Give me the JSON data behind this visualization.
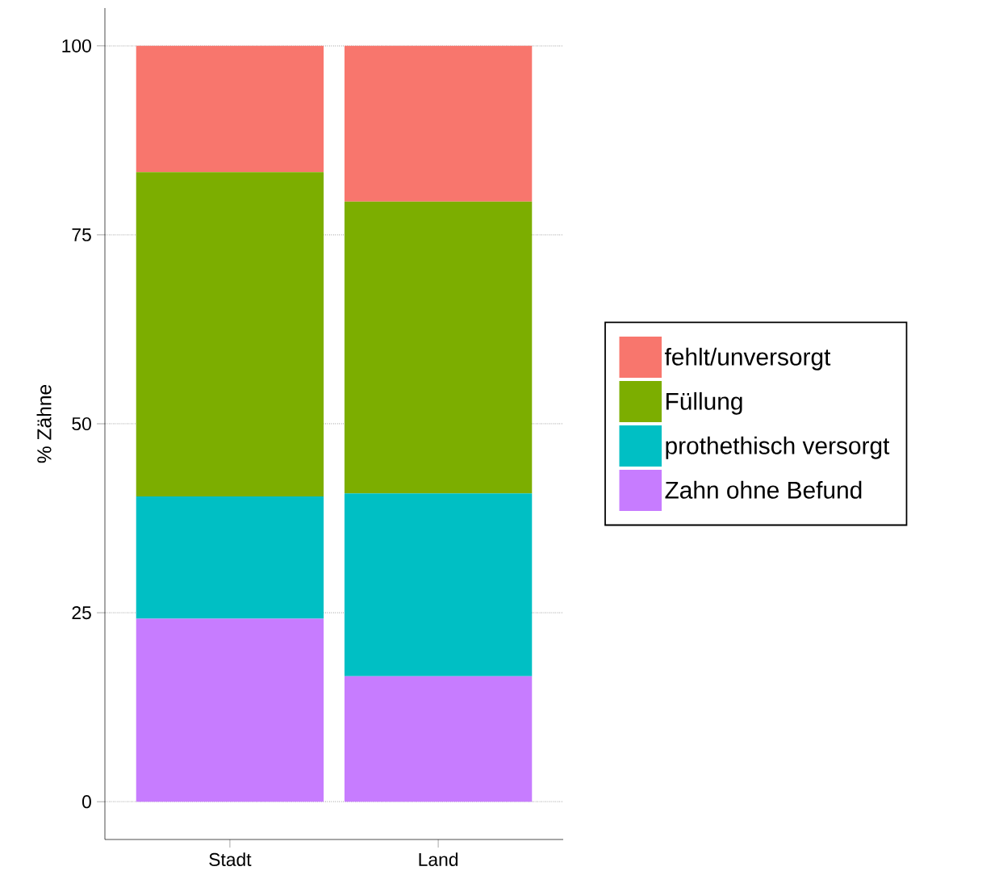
{
  "chart_data": {
    "type": "bar",
    "stacked": true,
    "ylabel": "% Zähne",
    "categories": [
      "Stadt",
      "Land"
    ],
    "series": [
      {
        "name": "Zahn ohne Befund",
        "color": "#c77cff",
        "values": [
          24.2,
          16.6
        ]
      },
      {
        "name": "prothethisch versorgt",
        "color": "#00bfc4",
        "values": [
          16.2,
          24.2
        ]
      },
      {
        "name": "Füllung",
        "color": "#7cae00",
        "values": [
          42.9,
          38.6
        ]
      },
      {
        "name": "fehlt/unversorgt",
        "color": "#f8766d",
        "values": [
          16.7,
          20.6
        ]
      }
    ],
    "ylim": [
      -5,
      105
    ],
    "yticks": [
      0,
      25,
      50,
      75,
      100
    ],
    "grid": "y",
    "legend": "right"
  }
}
